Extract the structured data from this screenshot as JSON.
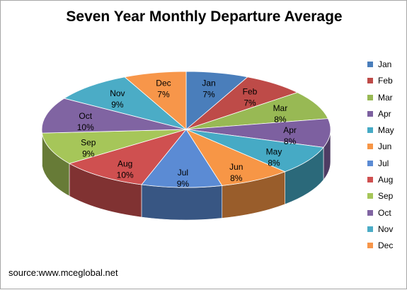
{
  "chart_data": {
    "type": "pie",
    "title": "Seven Year Monthly Departure Average",
    "categories": [
      "Jan",
      "Feb",
      "Mar",
      "Apr",
      "May",
      "Jun",
      "Jul",
      "Aug",
      "Sep",
      "Oct",
      "Nov",
      "Dec"
    ],
    "values": [
      7,
      7,
      8,
      8,
      8,
      8,
      9,
      10,
      9,
      10,
      9,
      7
    ],
    "value_labels": [
      "7%",
      "7%",
      "8%",
      "8%",
      "8%",
      "8%",
      "9%",
      "10%",
      "9%",
      "10%",
      "9%",
      "7%"
    ],
    "colors": [
      "#4a7ebb",
      "#be4b48",
      "#98b954",
      "#7d60a0",
      "#46aac5",
      "#f79646",
      "#5b8bd4",
      "#cf5050",
      "#a6c659",
      "#8064a2",
      "#4bacc6",
      "#f7964a"
    ],
    "legend_position": "right",
    "style": "3d-tilted"
  },
  "footer": {
    "source": "source:www.mceglobal.net"
  }
}
